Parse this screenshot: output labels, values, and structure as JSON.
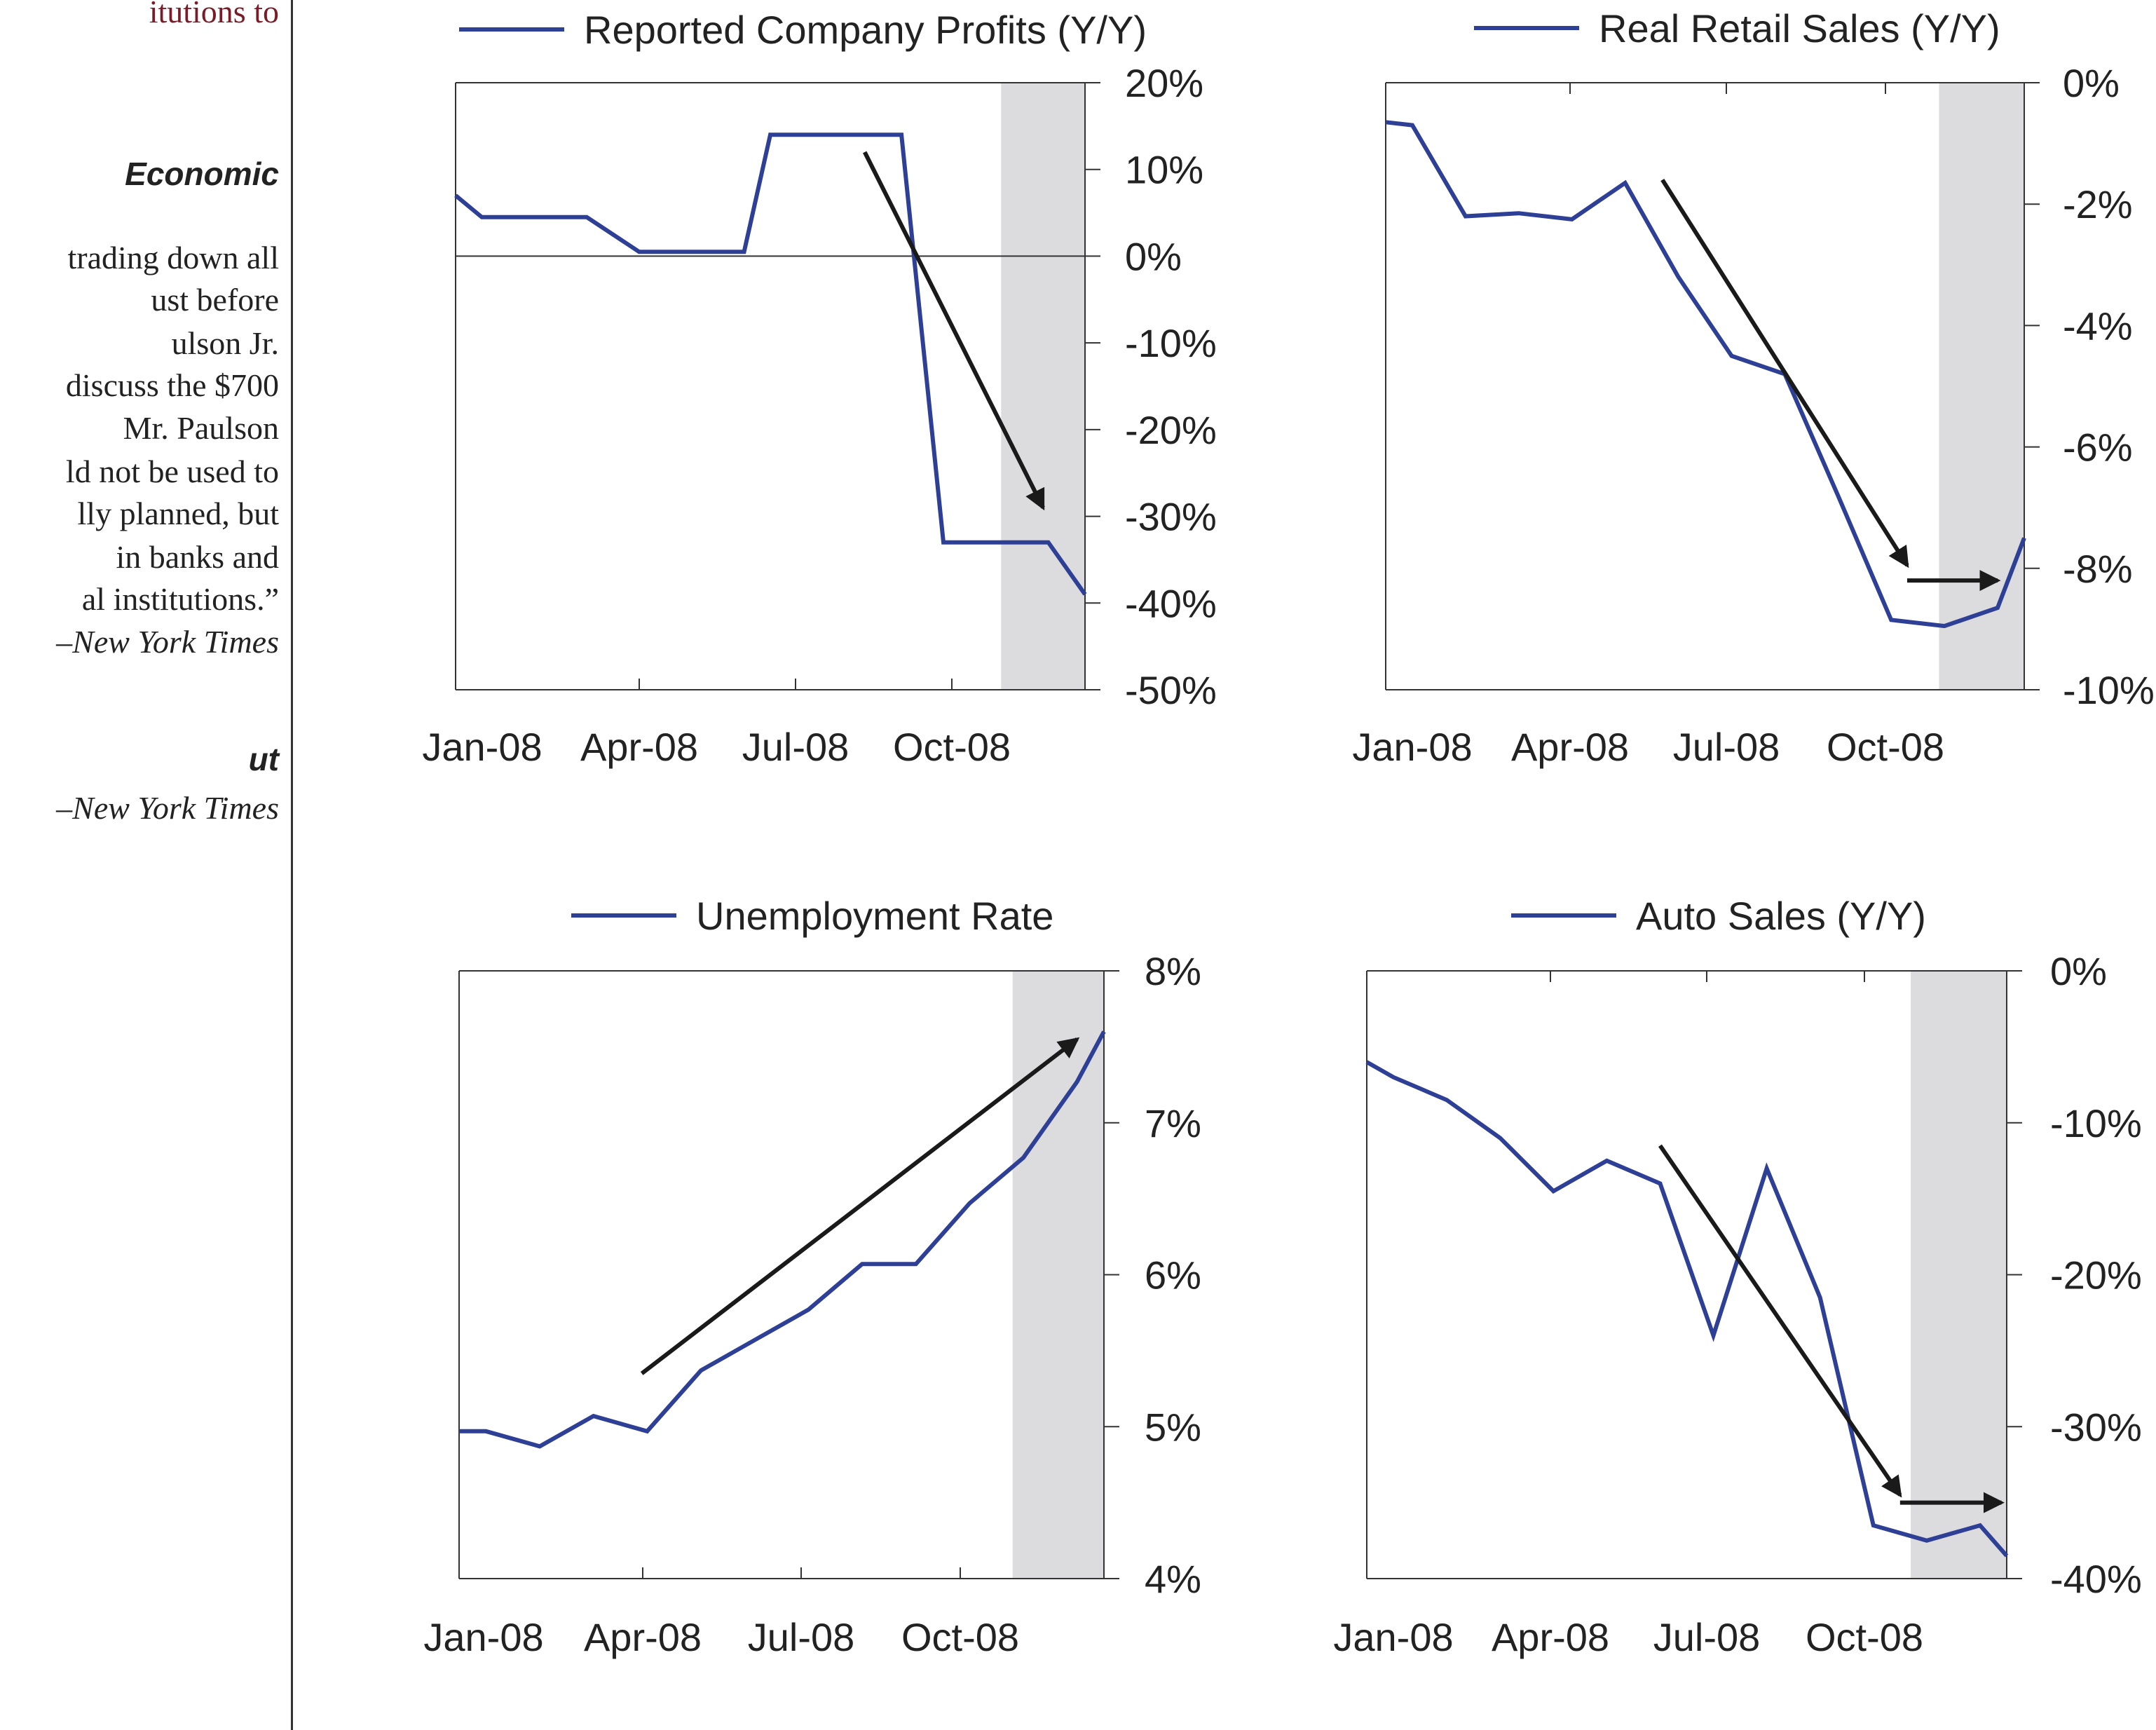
{
  "sidebar": {
    "lines": [
      {
        "text": "itutions to",
        "style": "red"
      },
      {
        "text": "Economic",
        "style": "head"
      },
      {
        "text": "trading down all",
        "style": ""
      },
      {
        "text": "ust before",
        "style": ""
      },
      {
        "text": "ulson Jr.",
        "style": ""
      },
      {
        "text": "discuss the $700",
        "style": ""
      },
      {
        "text": "Mr. Paulson",
        "style": ""
      },
      {
        "text": "ld not be used to",
        "style": ""
      },
      {
        "text": "lly planned, but",
        "style": ""
      },
      {
        "text": "in banks and",
        "style": ""
      },
      {
        "text": "al institutions.”",
        "style": ""
      },
      {
        "text": "–New York Times",
        "style": "cite"
      },
      {
        "text": "ut",
        "style": "head"
      },
      {
        "text": "–New York Times",
        "style": "cite"
      }
    ]
  },
  "chart_data": [
    {
      "type": "line",
      "title": "Reported Company Profits  (Y/Y)",
      "legend": "Reported Company Profits  (Y/Y)",
      "x_tick_labels": [
        "Jan-08",
        "Apr-08",
        "Jul-08",
        "Oct-08"
      ],
      "y_tick_labels": [
        "20%",
        "10%",
        "0%",
        "-10%",
        "-20%",
        "-30%",
        "-40%",
        "-50%"
      ],
      "ylim": [
        -50,
        20
      ],
      "xlim": [
        0,
        12
      ],
      "y_axis_side": "right",
      "zero_line": true,
      "shaded_region": [
        10.4,
        12
      ],
      "series": [
        {
          "x": [
            0,
            0.5,
            2.5,
            3.5,
            5.5,
            6,
            8.5,
            9.3,
            11.3,
            12
          ],
          "values": [
            7,
            4.5,
            4.5,
            0.5,
            0.5,
            14,
            14,
            -33,
            -33,
            -39
          ]
        }
      ],
      "arrows": [
        {
          "from": [
            7.8,
            12
          ],
          "to": [
            11.2,
            -29
          ]
        }
      ]
    },
    {
      "type": "line",
      "title": "Real Retail Sales (Y/Y)",
      "legend": "Real Retail Sales (Y/Y)",
      "x_tick_labels": [
        "Jan-08",
        "Apr-08",
        "Jul-08",
        "Oct-08"
      ],
      "y_tick_labels": [
        "0%",
        "-2%",
        "-4%",
        "-6%",
        "-8%",
        "-10%"
      ],
      "ylim": [
        -10,
        0
      ],
      "xlim": [
        0,
        12
      ],
      "y_axis_side": "right",
      "zero_line": false,
      "shaded_region": [
        10.4,
        12
      ],
      "series": [
        {
          "x": [
            0,
            0.5,
            1.5,
            2.5,
            3.5,
            4.5,
            5.5,
            6.5,
            7.5,
            8.5,
            9.5,
            10.5,
            11.5,
            12
          ],
          "values": [
            -0.65,
            -0.7,
            -2.2,
            -2.15,
            -2.25,
            -1.65,
            -3.2,
            -4.5,
            -4.8,
            -6.8,
            -8.85,
            -8.95,
            -8.65,
            -7.5
          ]
        }
      ],
      "arrows": [
        {
          "from": [
            5.2,
            -1.6
          ],
          "to": [
            9.8,
            -7.95
          ]
        },
        {
          "from": [
            9.8,
            -8.2
          ],
          "to": [
            11.5,
            -8.2
          ]
        }
      ]
    },
    {
      "type": "line",
      "title": "Unemployment Rate",
      "legend": "Unemployment Rate",
      "x_tick_labels": [
        "Jan-08",
        "Apr-08",
        "Jul-08",
        "Oct-08"
      ],
      "y_tick_labels": [
        "8%",
        "7%",
        "6%",
        "5%",
        "4%"
      ],
      "ylim": [
        4,
        8
      ],
      "xlim": [
        0,
        12
      ],
      "y_axis_side": "right",
      "zero_line": false,
      "shaded_region": [
        10.3,
        12
      ],
      "series": [
        {
          "x": [
            0,
            0.5,
            1.5,
            2.5,
            3.5,
            4.5,
            5.5,
            6.5,
            7.5,
            8.5,
            9.5,
            10.5,
            11.5,
            12
          ],
          "values": [
            4.97,
            4.97,
            4.87,
            5.07,
            4.97,
            5.37,
            5.57,
            5.77,
            6.07,
            6.07,
            6.47,
            6.77,
            7.27,
            7.6
          ]
        }
      ],
      "arrows": [
        {
          "from": [
            3.4,
            5.35
          ],
          "to": [
            11.5,
            7.55
          ]
        }
      ]
    },
    {
      "type": "line",
      "title": "Auto Sales (Y/Y)",
      "legend": "Auto Sales (Y/Y)",
      "x_tick_labels": [
        "Jan-08",
        "Apr-08",
        "Jul-08",
        "Oct-08"
      ],
      "y_tick_labels": [
        "0%",
        "-10%",
        "-20%",
        "-30%",
        "-40%"
      ],
      "ylim": [
        -40,
        0
      ],
      "xlim": [
        0,
        12
      ],
      "y_axis_side": "right",
      "zero_line": false,
      "shaded_region": [
        10.2,
        12
      ],
      "series": [
        {
          "x": [
            0,
            0.5,
            1.5,
            2.5,
            3.5,
            4.5,
            5.5,
            6.5,
            7.5,
            8.5,
            9.5,
            10.5,
            11.5,
            12
          ],
          "values": [
            -6,
            -7,
            -8.5,
            -11,
            -14.5,
            -12.5,
            -14,
            -24,
            -13,
            -21.5,
            -36.5,
            -37.5,
            -36.5,
            -38.5
          ]
        }
      ],
      "arrows": [
        {
          "from": [
            5.5,
            -11.5
          ],
          "to": [
            10,
            -34.5
          ]
        },
        {
          "from": [
            10,
            -35
          ],
          "to": [
            11.9,
            -35
          ]
        }
      ]
    }
  ],
  "colors": {
    "line": "#2e3f96",
    "arrow": "#1a1a1a",
    "shade": "#dcdcdf",
    "axis": "#333333"
  }
}
